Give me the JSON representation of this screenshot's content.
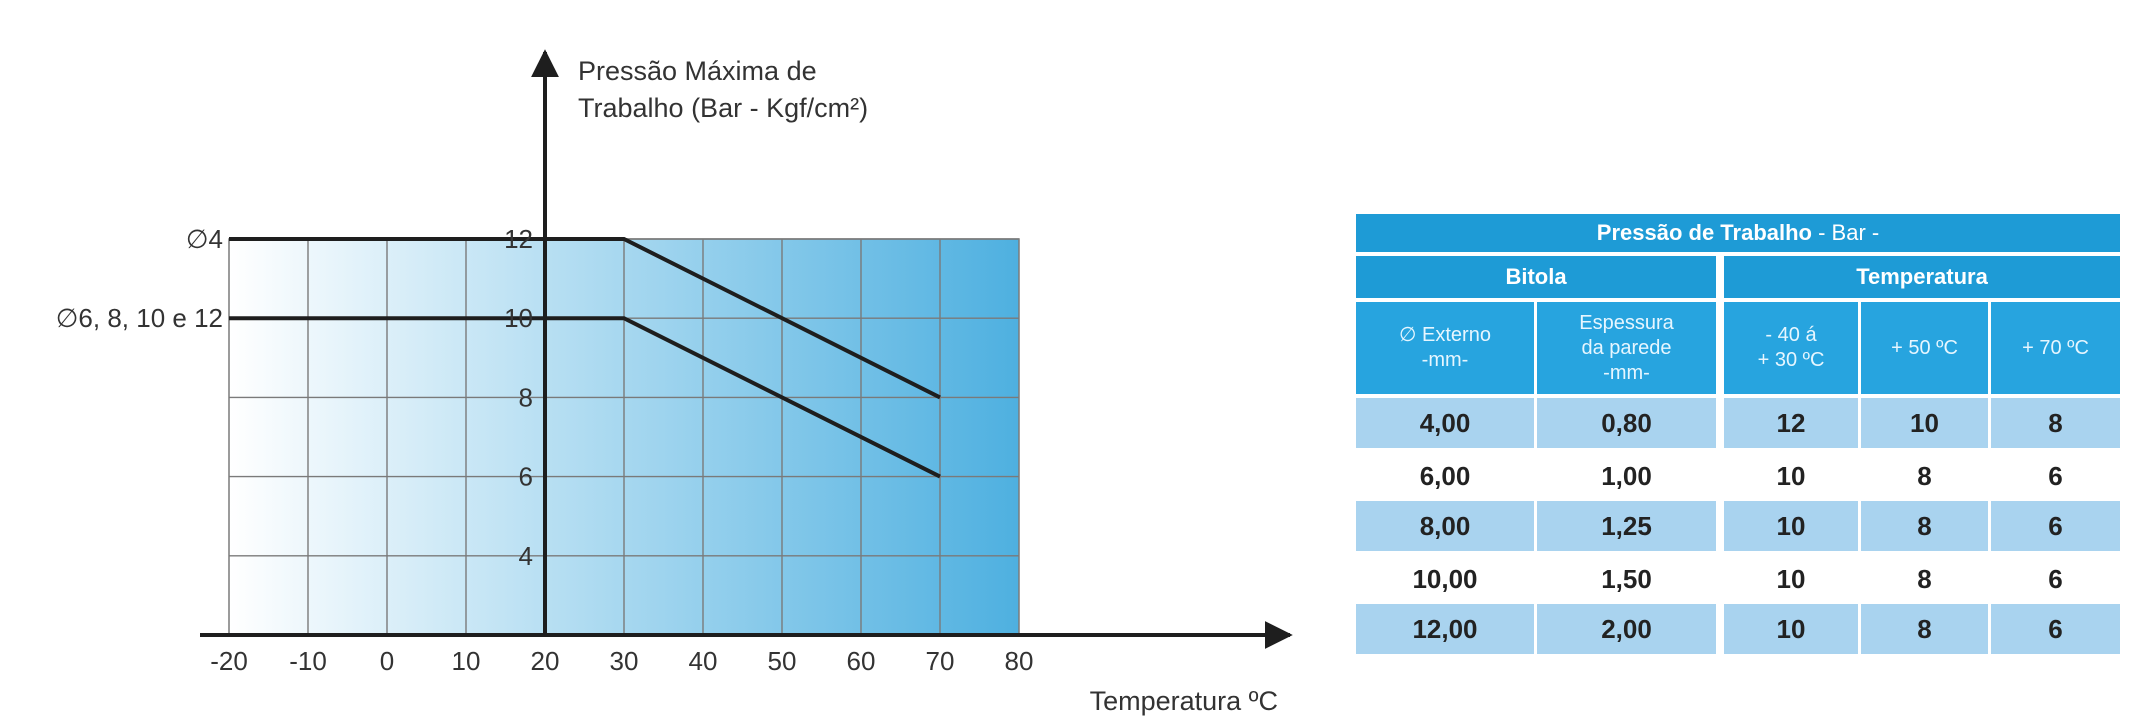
{
  "chart_data": {
    "type": "line",
    "ylabel": "Pressão Máxima de Trabalho (Bar - Kgf/cm²)",
    "ylabel_lines": [
      "Pressão Máxima de",
      "Trabalho (Bar - Kgf/cm²)"
    ],
    "xlabel": "Temperatura  ºC",
    "x_ticks": [
      -20,
      -10,
      0,
      10,
      20,
      30,
      40,
      50,
      60,
      70,
      80
    ],
    "y_ticks": [
      4,
      6,
      8,
      10,
      12
    ],
    "xlim": [
      -20,
      80
    ],
    "ylim": [
      2,
      12
    ],
    "grid": true,
    "series": [
      {
        "name": "∅4",
        "x": [
          -20,
          30,
          70
        ],
        "y": [
          12,
          12,
          8
        ]
      },
      {
        "name": "∅6, 8, 10 e 12",
        "x": [
          -20,
          30,
          70
        ],
        "y": [
          10,
          10,
          6
        ]
      }
    ],
    "colors": {
      "gradient_start": "#ffffff",
      "gradient_end": "#4eb0e0",
      "line": "#1e1e1e",
      "grid": "#7a7a7a"
    }
  },
  "table": {
    "title": "Pressão de Trabalho",
    "title_suffix": "- Bar -",
    "group_bitola": "Bitola",
    "group_temperatura": "Temperatura",
    "columns": [
      [
        "∅ Externo",
        "-mm-"
      ],
      [
        "Espessura",
        "da parede",
        "-mm-"
      ],
      [
        "- 40  á",
        "+ 30 ºC"
      ],
      [
        "+ 50 ºC"
      ],
      [
        "+ 70 ºC"
      ]
    ],
    "rows": [
      [
        "4,00",
        "0,80",
        "12",
        "10",
        "8"
      ],
      [
        "6,00",
        "1,00",
        "10",
        "8",
        "6"
      ],
      [
        "8,00",
        "1,25",
        "10",
        "8",
        "6"
      ],
      [
        "10,00",
        "1,50",
        "10",
        "8",
        "6"
      ],
      [
        "12,00",
        "2,00",
        "10",
        "8",
        "6"
      ]
    ],
    "colors": {
      "header": "#1e9bd6",
      "subheader": "#27a4df",
      "shaded_row": "#a9d3ef"
    }
  }
}
